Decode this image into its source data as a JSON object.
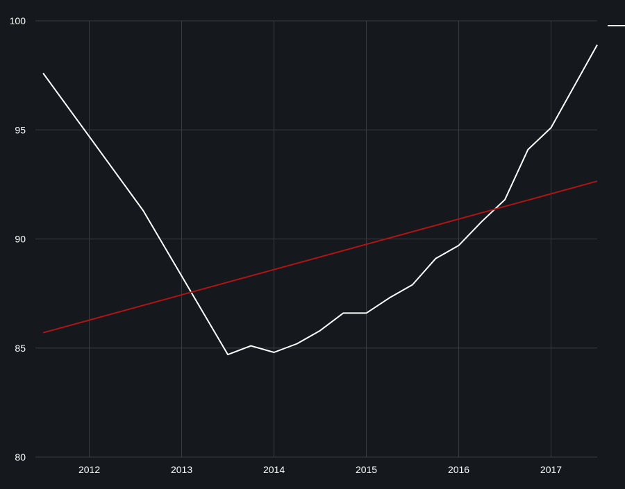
{
  "colors": {
    "background": "#15181c",
    "grid": "#3a3d42",
    "axis_text": "#ffffff",
    "series_primary": "#ffffff",
    "series_trend": "#b01414"
  },
  "chart_data": {
    "type": "line",
    "title": "",
    "xlabel": "",
    "ylabel": "",
    "x_ticks": [
      "2012",
      "2013",
      "2014",
      "2015",
      "2016",
      "2017"
    ],
    "y_ticks": [
      "80",
      "85",
      "90",
      "95",
      "100"
    ],
    "xlim": [
      "2011-06",
      "2017-07"
    ],
    "ylim": [
      80,
      100
    ],
    "grid": true,
    "legend": "top-right",
    "series": [
      {
        "values_x": [
          "2011-07",
          "2012-08",
          "2013-07",
          "2013-10",
          "2014-01",
          "2014-04",
          "2014-07",
          "2014-10",
          "2015-01",
          "2015-04",
          "2015-07",
          "2015-10",
          "2016-01",
          "2016-04",
          "2016-07",
          "2016-10",
          "2017-01",
          "2017-07"
        ],
        "values_y": [
          97.6,
          91.3,
          84.7,
          85.1,
          84.8,
          85.2,
          85.8,
          86.6,
          86.6,
          87.3,
          87.9,
          89.1,
          89.7,
          90.8,
          91.8,
          94.1,
          95.1,
          98.9
        ]
      },
      {
        "values_x": [
          "2011-07",
          "2017-07"
        ],
        "values_y": [
          85.7,
          92.65
        ]
      }
    ]
  }
}
